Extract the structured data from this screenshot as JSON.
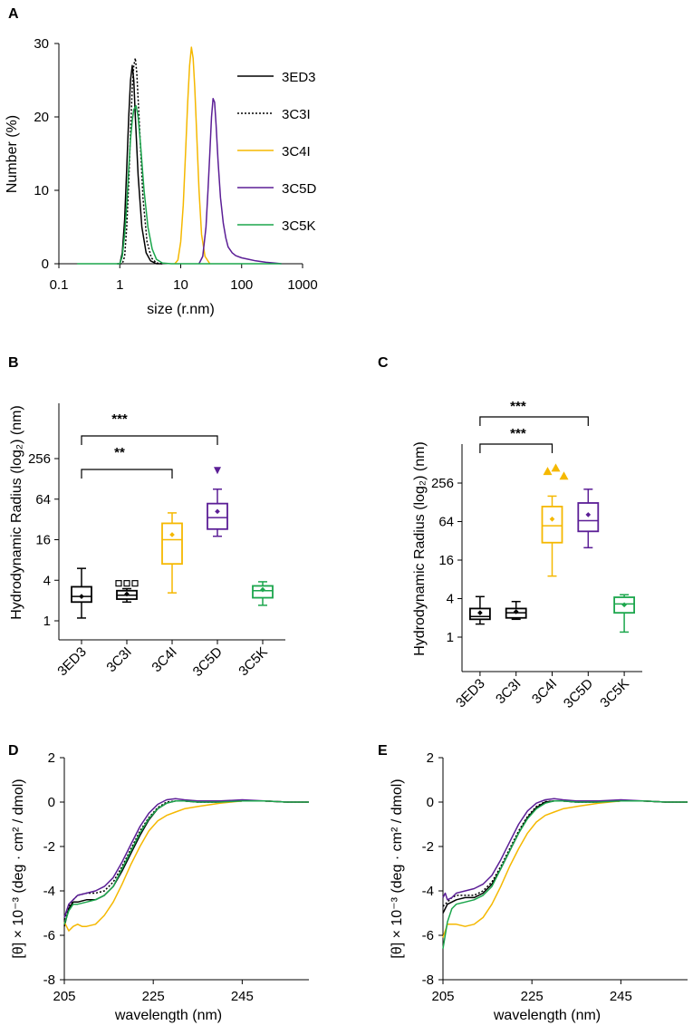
{
  "colors": {
    "3ED3": "#000000",
    "3C3I": "#000000",
    "3C4I": "#f5b800",
    "3C5D": "#5b1e96",
    "3C5K": "#1ba64c"
  },
  "chart_data": [
    {
      "panel": "A",
      "type": "line",
      "xlabel": "size (r.nm)",
      "ylabel": "Number (%)",
      "xscale": "log",
      "xlim": [
        0.1,
        1000
      ],
      "ylim": [
        0,
        30
      ],
      "xticks": [
        "0.1",
        "1",
        "10",
        "100",
        "1000"
      ],
      "yticks": [
        "0",
        "10",
        "20",
        "30"
      ],
      "legend": [
        "3ED3",
        "3C3I",
        "3C4I",
        "3C5D",
        "3C5K"
      ],
      "series": [
        {
          "name": "3ED3",
          "style": "solid",
          "peak_x": 1.6,
          "peak_y": 27,
          "x": [
            0.9,
            1.0,
            1.1,
            1.2,
            1.3,
            1.4,
            1.5,
            1.6,
            1.7,
            1.8,
            2.0,
            2.3,
            2.7,
            3.2,
            4,
            5
          ],
          "y": [
            0,
            0,
            1.5,
            6,
            13,
            20,
            25,
            27,
            25,
            20,
            12,
            5,
            1.5,
            0.4,
            0,
            0
          ]
        },
        {
          "name": "3C3I",
          "style": "dotted",
          "peak_x": 1.8,
          "peak_y": 28,
          "x": [
            1.0,
            1.1,
            1.2,
            1.3,
            1.4,
            1.5,
            1.6,
            1.7,
            1.8,
            1.9,
            2.1,
            2.4,
            2.8,
            3.3,
            4,
            5
          ],
          "y": [
            0,
            0,
            1,
            5,
            11,
            18,
            24,
            27,
            28,
            26,
            19,
            9,
            3,
            0.8,
            0.1,
            0
          ]
        },
        {
          "name": "3C4I",
          "style": "solid",
          "peak_x": 15,
          "peak_y": 29.5,
          "x": [
            8,
            9,
            10,
            11,
            12,
            13,
            14,
            15,
            16,
            17,
            18,
            20,
            22,
            25,
            30
          ],
          "y": [
            0,
            0.5,
            3,
            8,
            15,
            22,
            27,
            29.5,
            28,
            24,
            19,
            10,
            4,
            1,
            0
          ]
        },
        {
          "name": "3C5D",
          "style": "solid",
          "peak_x": 34,
          "peak_y": 22.5,
          "x": [
            20,
            23,
            26,
            28,
            30,
            32,
            34,
            36,
            38,
            41,
            45,
            50,
            55,
            60,
            70,
            80,
            100,
            130,
            170,
            250,
            350,
            450
          ],
          "y": [
            0,
            1,
            5,
            10,
            15,
            20,
            22.5,
            22,
            19,
            14,
            9,
            5.5,
            3.5,
            2.3,
            1.5,
            1.1,
            0.8,
            0.6,
            0.4,
            0.2,
            0.1,
            0
          ]
        },
        {
          "name": "3C5K",
          "style": "solid",
          "peak_x": 1.85,
          "peak_y": 21.5,
          "x": [
            0.2,
            0.5,
            0.9,
            1.0,
            1.1,
            1.2,
            1.3,
            1.4,
            1.5,
            1.6,
            1.7,
            1.85,
            2.0,
            2.2,
            2.5,
            2.9,
            3.4,
            4,
            5,
            7,
            10,
            20,
            50,
            100,
            200,
            450
          ],
          "y": [
            0,
            0,
            0,
            0,
            1,
            4,
            8,
            13,
            17,
            19.5,
            21,
            21.5,
            20,
            16,
            10,
            5,
            2,
            0.6,
            0.1,
            0,
            0,
            0,
            0,
            0,
            0,
            0
          ]
        }
      ]
    },
    {
      "panel": "B",
      "type": "box",
      "ylabel": "Hydrodynamic Radius (log₂) (nm)",
      "yscale": "log2",
      "yticks": [
        "1",
        "4",
        "16",
        "64",
        "256"
      ],
      "categories": [
        "3ED3",
        "3C3I",
        "3C4I",
        "3C5D",
        "3C5K"
      ],
      "boxes": [
        {
          "name": "3ED3",
          "min": 1.1,
          "q1": 1.9,
          "median": 2.3,
          "q3": 3.2,
          "max": 6,
          "mean": 2.3
        },
        {
          "name": "3C3I",
          "min": 1.9,
          "q1": 2.1,
          "median": 2.4,
          "q3": 2.8,
          "max": 3,
          "mean": 2.5,
          "outliers": [
            3.6,
            3.6,
            3.6
          ]
        },
        {
          "name": "3C4I",
          "min": 2.6,
          "q1": 7,
          "median": 16,
          "q3": 28,
          "max": 40,
          "mean": 19
        },
        {
          "name": "3C5D",
          "min": 18,
          "q1": 23,
          "median": 34,
          "q3": 55,
          "max": 90,
          "mean": 42,
          "outliers": [
            170
          ]
        },
        {
          "name": "3C5K",
          "min": 1.7,
          "q1": 2.2,
          "median": 2.8,
          "q3": 3.3,
          "max": 3.8,
          "mean": 2.9
        }
      ],
      "annotations": [
        {
          "from": "3ED3",
          "to": "3C5D",
          "label": "***"
        },
        {
          "from": "3ED3",
          "to": "3C4I",
          "label": "**"
        }
      ]
    },
    {
      "panel": "C",
      "type": "box",
      "ylabel": "Hydrodynamic Radius (log₂) (nm)",
      "yscale": "log2",
      "yticks": [
        "1",
        "4",
        "16",
        "64",
        "256"
      ],
      "categories": [
        "3ED3",
        "3C3I",
        "3C4I",
        "3C5D",
        "3C5K"
      ],
      "boxes": [
        {
          "name": "3ED3",
          "min": 1.6,
          "q1": 1.9,
          "median": 2.1,
          "q3": 2.8,
          "max": 4.3,
          "mean": 2.4
        },
        {
          "name": "3C3I",
          "min": 1.9,
          "q1": 2,
          "median": 2.4,
          "q3": 2.8,
          "max": 3.6,
          "mean": 2.5
        },
        {
          "name": "3C4I",
          "min": 9,
          "q1": 30,
          "median": 55,
          "q3": 110,
          "max": 160,
          "mean": 70,
          "outliers": [
            390,
            440,
            330
          ]
        },
        {
          "name": "3C5D",
          "min": 25,
          "q1": 45,
          "median": 66,
          "q3": 125,
          "max": 205,
          "mean": 82
        },
        {
          "name": "3C5K",
          "min": 1.2,
          "q1": 2.4,
          "median": 3.3,
          "q3": 4.2,
          "max": 4.6,
          "mean": 3.2
        }
      ],
      "annotations": [
        {
          "from": "3ED3",
          "to": "3C5D",
          "label": "***"
        },
        {
          "from": "3ED3",
          "to": "3C4I",
          "label": "***"
        }
      ]
    },
    {
      "panel": "D",
      "type": "line",
      "xlabel": "wavelength (nm)",
      "ylabel": "[θ] × 10⁻³ (deg · cm² / dmol)",
      "xlim": [
        205,
        260
      ],
      "ylim": [
        -8,
        2
      ],
      "xticks": [
        "205",
        "225",
        "245"
      ],
      "yticks": [
        "2",
        "0",
        "-2",
        "-4",
        "-6",
        "-8"
      ],
      "series": [
        {
          "name": "3ED3",
          "style": "solid",
          "x": [
            205,
            206,
            207,
            208,
            210,
            212,
            214,
            216,
            218,
            220,
            222,
            224,
            226,
            228,
            230,
            232,
            235,
            240,
            245,
            250,
            255,
            260
          ],
          "y": [
            -5.6,
            -4.8,
            -4.5,
            -4.5,
            -4.4,
            -4.4,
            -4.2,
            -3.8,
            -3.1,
            -2.3,
            -1.5,
            -0.8,
            -0.3,
            -0.05,
            0.05,
            0.05,
            0,
            0,
            0.05,
            0.05,
            0,
            0
          ]
        },
        {
          "name": "3C3I",
          "style": "dotted",
          "x": [
            205,
            206,
            207,
            208,
            210,
            212,
            214,
            216,
            218,
            220,
            222,
            224,
            226,
            228,
            230,
            232,
            235,
            240,
            245,
            250,
            255,
            260
          ],
          "y": [
            -5.3,
            -4.7,
            -4.4,
            -4.2,
            -4.1,
            -4.1,
            -4.0,
            -3.6,
            -2.9,
            -2.1,
            -1.3,
            -0.7,
            -0.25,
            0,
            0.05,
            0.05,
            0,
            0,
            0.05,
            0.05,
            0,
            0
          ]
        },
        {
          "name": "3C4I",
          "style": "solid",
          "x": [
            205,
            206,
            207,
            208,
            209,
            210,
            212,
            214,
            216,
            218,
            220,
            222,
            224,
            226,
            228,
            230,
            232,
            235,
            240,
            245,
            250,
            255,
            260
          ],
          "y": [
            -5.4,
            -5.8,
            -5.6,
            -5.5,
            -5.6,
            -5.6,
            -5.5,
            -5.1,
            -4.5,
            -3.7,
            -2.8,
            -2.0,
            -1.3,
            -0.85,
            -0.6,
            -0.45,
            -0.3,
            -0.2,
            -0.05,
            0.05,
            0.05,
            0,
            0
          ]
        },
        {
          "name": "3C5D",
          "style": "solid",
          "x": [
            205,
            206,
            207,
            208,
            210,
            212,
            214,
            216,
            218,
            220,
            222,
            224,
            226,
            228,
            230,
            232,
            235,
            240,
            245,
            250,
            255,
            260
          ],
          "y": [
            -5.2,
            -4.6,
            -4.4,
            -4.2,
            -4.1,
            -4.0,
            -3.8,
            -3.4,
            -2.7,
            -1.9,
            -1.1,
            -0.5,
            -0.1,
            0.1,
            0.15,
            0.1,
            0.05,
            0.05,
            0.1,
            0.05,
            0,
            0
          ]
        },
        {
          "name": "3C5K",
          "style": "solid",
          "x": [
            205,
            206,
            207,
            208,
            210,
            212,
            214,
            216,
            218,
            220,
            222,
            224,
            226,
            228,
            230,
            232,
            235,
            240,
            245,
            250,
            255,
            260
          ],
          "y": [
            -5.5,
            -4.9,
            -4.6,
            -4.6,
            -4.5,
            -4.4,
            -4.2,
            -3.8,
            -3.0,
            -2.2,
            -1.4,
            -0.75,
            -0.3,
            -0.05,
            0.05,
            0.05,
            0,
            0,
            0.05,
            0.05,
            0,
            0
          ]
        }
      ]
    },
    {
      "panel": "E",
      "type": "line",
      "xlabel": "wavelength (nm)",
      "ylabel": "[θ] × 10⁻³ (deg · cm² / dmol)",
      "xlim": [
        205,
        260
      ],
      "ylim": [
        -8,
        2
      ],
      "xticks": [
        "205",
        "225",
        "245"
      ],
      "yticks": [
        "2",
        "0",
        "-2",
        "-4",
        "-6",
        "-8"
      ],
      "series": [
        {
          "name": "3ED3",
          "style": "solid",
          "x": [
            205,
            206,
            207,
            208,
            210,
            212,
            214,
            216,
            218,
            220,
            222,
            224,
            226,
            228,
            230,
            232,
            235,
            240,
            245,
            250,
            255,
            260
          ],
          "y": [
            -5.0,
            -4.6,
            -4.5,
            -4.4,
            -4.3,
            -4.3,
            -4.1,
            -3.7,
            -3.0,
            -2.2,
            -1.4,
            -0.7,
            -0.25,
            0,
            0.05,
            0.05,
            0,
            0,
            0.05,
            0.05,
            0,
            0
          ]
        },
        {
          "name": "3C3I",
          "style": "dotted",
          "x": [
            205,
            206,
            207,
            208,
            210,
            212,
            214,
            216,
            218,
            220,
            222,
            224,
            226,
            228,
            230,
            232,
            235,
            240,
            245,
            250,
            255,
            260
          ],
          "y": [
            -4.7,
            -4.5,
            -4.3,
            -4.2,
            -4.2,
            -4.2,
            -4.0,
            -3.6,
            -2.9,
            -2.1,
            -1.3,
            -0.65,
            -0.2,
            0.02,
            0.05,
            0.05,
            0,
            0,
            0.05,
            0.05,
            0,
            0
          ]
        },
        {
          "name": "3C4I",
          "style": "solid",
          "x": [
            205,
            206,
            207,
            208,
            210,
            212,
            214,
            216,
            218,
            220,
            222,
            224,
            226,
            228,
            230,
            232,
            235,
            240,
            245,
            250,
            255,
            260
          ],
          "y": [
            -6.1,
            -5.5,
            -5.5,
            -5.5,
            -5.6,
            -5.5,
            -5.2,
            -4.6,
            -3.8,
            -2.9,
            -2.1,
            -1.4,
            -0.9,
            -0.6,
            -0.45,
            -0.3,
            -0.2,
            -0.05,
            0.05,
            0.05,
            0,
            0
          ]
        },
        {
          "name": "3C5D",
          "style": "solid",
          "x": [
            205,
            205.5,
            206,
            207,
            208,
            210,
            212,
            214,
            216,
            218,
            220,
            222,
            224,
            226,
            228,
            230,
            232,
            235,
            240,
            245,
            250,
            255,
            260
          ],
          "y": [
            -4.3,
            -4.1,
            -4.4,
            -4.3,
            -4.1,
            -4.0,
            -3.9,
            -3.7,
            -3.3,
            -2.6,
            -1.8,
            -1.0,
            -0.4,
            -0.05,
            0.1,
            0.15,
            0.1,
            0.05,
            0.05,
            0.1,
            0.05,
            0,
            0
          ]
        },
        {
          "name": "3C5K",
          "style": "solid",
          "x": [
            205,
            206,
            207,
            208,
            210,
            212,
            214,
            216,
            218,
            220,
            222,
            224,
            226,
            228,
            230,
            232,
            235,
            240,
            245,
            250,
            255,
            260
          ],
          "y": [
            -6.6,
            -5.4,
            -4.8,
            -4.6,
            -4.5,
            -4.4,
            -4.2,
            -3.8,
            -3.0,
            -2.2,
            -1.4,
            -0.75,
            -0.3,
            -0.05,
            0.05,
            0.05,
            0,
            0,
            0.05,
            0.05,
            0,
            0
          ]
        }
      ]
    }
  ]
}
